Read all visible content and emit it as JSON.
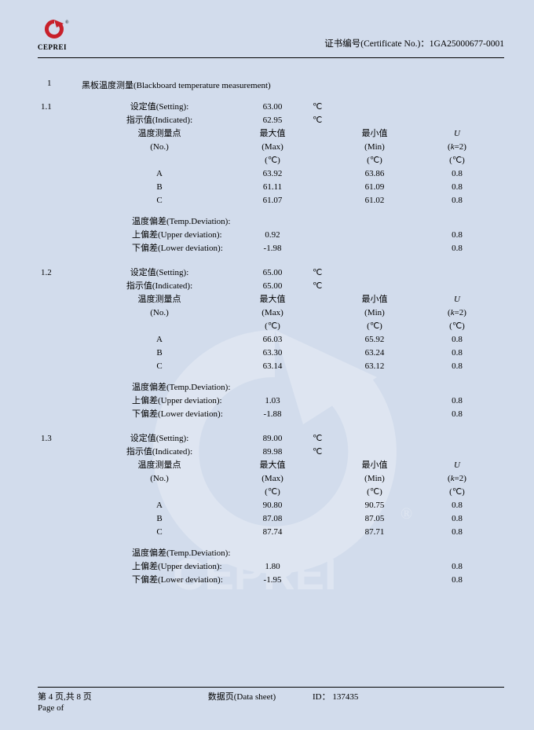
{
  "header": {
    "logo_text": "CEPREI",
    "cert_label": "证书编号(Certificate No.)：",
    "cert_no": "1GA25000677-0001"
  },
  "section": {
    "num": "1",
    "title": "黑板温度测量(Blackboard temperature measurement)"
  },
  "labels": {
    "setting": "设定值(Setting):",
    "indicated": "指示值(Indicated):",
    "point_cn": "温度测量点",
    "point_en": "(No.)",
    "max_cn": "最大值",
    "max_en": "(Max)",
    "min_cn": "最小值",
    "min_en": "(Min)",
    "u_label": "U",
    "k_label": "(k=2)",
    "unit_c": "(℃)",
    "deg_c": "℃",
    "dev_header": "温度偏差(Temp.Deviation):",
    "upper_dev": "上偏差(Upper deviation):",
    "lower_dev": "下偏差(Lower deviation):"
  },
  "blocks": [
    {
      "num": "1.1",
      "setting": "63.00",
      "indicated": "62.95",
      "rows": [
        {
          "no": "A",
          "max": "63.92",
          "min": "63.86",
          "u": "0.8"
        },
        {
          "no": "B",
          "max": "61.11",
          "min": "61.09",
          "u": "0.8"
        },
        {
          "no": "C",
          "max": "61.07",
          "min": "61.02",
          "u": "0.8"
        }
      ],
      "upper": {
        "val": "0.92",
        "u": "0.8"
      },
      "lower": {
        "val": "-1.98",
        "u": "0.8"
      }
    },
    {
      "num": "1.2",
      "setting": "65.00",
      "indicated": "65.00",
      "rows": [
        {
          "no": "A",
          "max": "66.03",
          "min": "65.92",
          "u": "0.8"
        },
        {
          "no": "B",
          "max": "63.30",
          "min": "63.24",
          "u": "0.8"
        },
        {
          "no": "C",
          "max": "63.14",
          "min": "63.12",
          "u": "0.8"
        }
      ],
      "upper": {
        "val": "1.03",
        "u": "0.8"
      },
      "lower": {
        "val": "-1.88",
        "u": "0.8"
      }
    },
    {
      "num": "1.3",
      "setting": "89.00",
      "indicated": "89.98",
      "rows": [
        {
          "no": "A",
          "max": "90.80",
          "min": "90.75",
          "u": "0.8"
        },
        {
          "no": "B",
          "max": "87.08",
          "min": "87.05",
          "u": "0.8"
        },
        {
          "no": "C",
          "max": "87.74",
          "min": "87.71",
          "u": "0.8"
        }
      ],
      "upper": {
        "val": "1.80",
        "u": "0.8"
      },
      "lower": {
        "val": "-1.95",
        "u": "0.8"
      }
    }
  ],
  "footer": {
    "page_cn_prefix": "第",
    "page_current": "4",
    "page_cn_mid": "页,共",
    "page_total": "8",
    "page_cn_suffix": "页",
    "sheet_label": "数据页(Data sheet)",
    "id_label": "ID：",
    "id_value": "137435",
    "page_en": "Page   of"
  },
  "watermark_text": "CEPREI",
  "colors": {
    "bg": "#d2dcec",
    "text": "#000000",
    "watermark": "#ffffff"
  }
}
